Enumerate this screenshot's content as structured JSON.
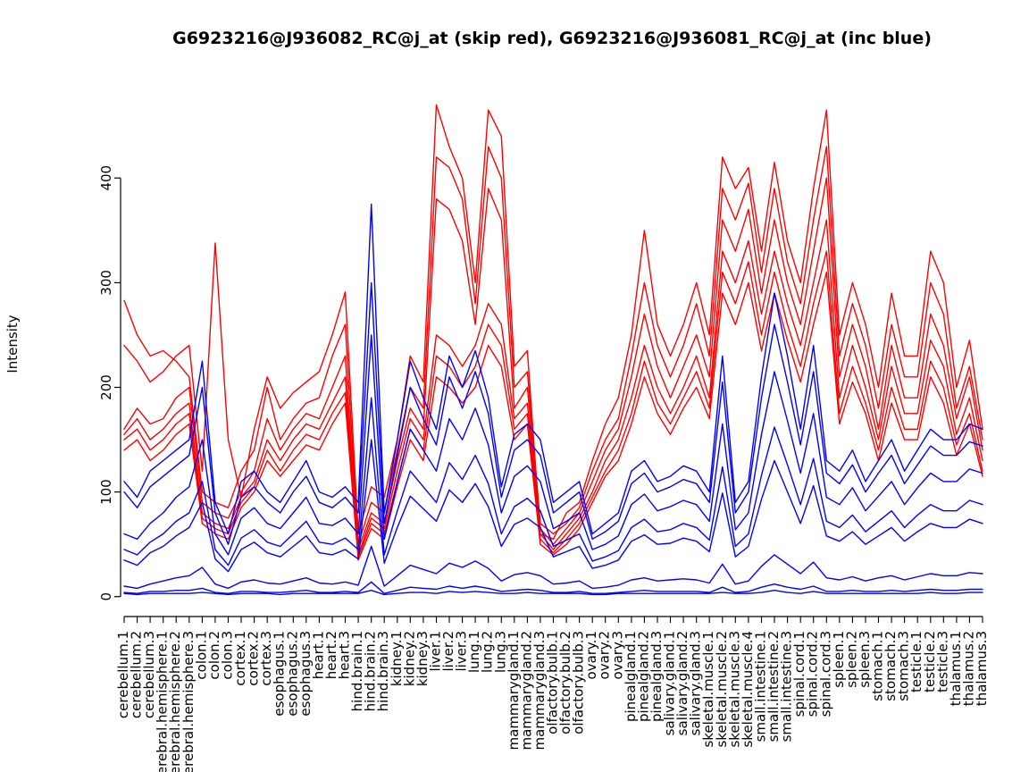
{
  "colors": {
    "skip_series": "#FF0000",
    "inc_series": "#0000FF",
    "axis": "#000000",
    "background": "#FFFFFF"
  },
  "chart_data": {
    "type": "line",
    "title": "G6923216@J936082_RC@j_at (skip red), G6923216@J936081_RC@j_at (inc blue)",
    "xlabel": "",
    "ylabel": "Intensity",
    "ylim": [
      0,
      470
    ],
    "yticks": [
      0,
      100,
      200,
      300,
      400
    ],
    "grid": false,
    "legend_position": "none",
    "legend_note": {
      "red": "G6923216@J936082_RC@j_at (skip)",
      "blue": "G6923216@J936081_RC@j_at (inc)"
    },
    "x_tick_label_rotation": 90,
    "categories": [
      "cerebellum.1",
      "cerebellum.2",
      "cerebellum.3",
      "cerebral.hemisphere.1",
      "cerebral.hemisphere.2",
      "cerebral.hemisphere.3",
      "colon.1",
      "colon.2",
      "colon.3",
      "cortex.1",
      "cortex.2",
      "cortex.3",
      "esophagus.1",
      "esophagus.2",
      "esophagus.3",
      "heart.1",
      "heart.2",
      "heart.3",
      "hind.brain.1",
      "hind.brain.2",
      "hind.brain.3",
      "kidney.1",
      "kidney.2",
      "kidney.3",
      "liver.1",
      "liver.2",
      "liver.3",
      "lung.1",
      "lung.2",
      "lung.3",
      "mammarygland.1",
      "mammarygland.2",
      "mammarygland.3",
      "olfactory.bulb.1",
      "olfactory.bulb.2",
      "olfactory.bulb.3",
      "ovary.1",
      "ovary.2",
      "ovary.3",
      "pinealgland.1",
      "pinealgland.2",
      "pinealgland.3",
      "salivary.gland.1",
      "salivary.gland.2",
      "salivary.gland.3",
      "skeletal.muscle.1",
      "skeletal.muscle.2",
      "skeletal.muscle.3",
      "skeletal.muscle.4",
      "small.intestine.1",
      "small.intestine.2",
      "small.intestine.3",
      "spinal.cord.1",
      "spinal.cord.2",
      "spinal.cord.3",
      "spleen.1",
      "spleen.2",
      "spleen.3",
      "stomach.1",
      "stomach.2",
      "stomach.3",
      "testicle.1",
      "testicle.2",
      "testicle.3",
      "thalamus.1",
      "thalamus.2",
      "thalamus.3"
    ],
    "series": [
      {
        "name": "skip-red-1",
        "color": "#FF0000",
        "values": [
          240,
          225,
          205,
          215,
          230,
          240,
          120,
          338,
          150,
          95,
          160,
          210,
          180,
          195,
          205,
          215,
          250,
          291,
          60,
          105,
          95,
          150,
          230,
          205,
          470,
          430,
          400,
          300,
          465,
          440,
          220,
          235,
          60,
          55,
          80,
          90,
          130,
          165,
          190,
          250,
          350,
          260,
          230,
          260,
          300,
          250,
          420,
          390,
          410,
          330,
          415,
          340,
          300,
          390,
          465,
          250,
          300,
          260,
          200,
          290,
          230,
          230,
          330,
          300,
          200,
          245,
          160
        ]
      },
      {
        "name": "skip-red-2",
        "color": "#FF0000",
        "values": [
          283,
          250,
          230,
          235,
          225,
          210,
          100,
          90,
          85,
          120,
          140,
          200,
          150,
          170,
          185,
          190,
          230,
          260,
          50,
          90,
          80,
          140,
          200,
          180,
          420,
          410,
          380,
          280,
          430,
          400,
          200,
          215,
          70,
          60,
          70,
          85,
          120,
          150,
          170,
          230,
          300,
          240,
          210,
          240,
          280,
          230,
          390,
          360,
          395,
          310,
          390,
          320,
          280,
          360,
          430,
          230,
          280,
          240,
          180,
          260,
          210,
          210,
          300,
          270,
          180,
          220,
          150
        ]
      },
      {
        "name": "skip-red-3",
        "color": "#FF0000",
        "values": [
          160,
          180,
          165,
          170,
          190,
          200,
          90,
          80,
          75,
          100,
          120,
          170,
          140,
          160,
          175,
          170,
          200,
          230,
          45,
          80,
          70,
          130,
          180,
          160,
          380,
          370,
          340,
          260,
          390,
          360,
          180,
          200,
          65,
          50,
          65,
          80,
          110,
          140,
          160,
          210,
          270,
          220,
          190,
          220,
          250,
          210,
          360,
          330,
          370,
          290,
          360,
          300,
          260,
          330,
          400,
          210,
          260,
          220,
          160,
          240,
          190,
          190,
          270,
          240,
          170,
          210,
          140
        ]
      },
      {
        "name": "skip-red-4",
        "color": "#FF0000",
        "values": [
          155,
          170,
          150,
          160,
          175,
          185,
          80,
          70,
          65,
          95,
          110,
          150,
          130,
          150,
          165,
          160,
          185,
          210,
          40,
          75,
          65,
          120,
          170,
          150,
          250,
          240,
          220,
          240,
          280,
          260,
          170,
          185,
          60,
          45,
          60,
          75,
          100,
          130,
          150,
          190,
          240,
          200,
          175,
          200,
          230,
          190,
          330,
          300,
          340,
          270,
          330,
          280,
          240,
          300,
          360,
          190,
          240,
          200,
          150,
          220,
          175,
          175,
          245,
          220,
          155,
          190,
          130
        ]
      },
      {
        "name": "skip-red-5",
        "color": "#FF0000",
        "values": [
          150,
          160,
          140,
          150,
          165,
          175,
          75,
          65,
          60,
          90,
          105,
          140,
          120,
          140,
          155,
          150,
          175,
          195,
          38,
          70,
          60,
          110,
          160,
          140,
          230,
          220,
          200,
          220,
          260,
          240,
          160,
          175,
          55,
          42,
          55,
          70,
          95,
          120,
          140,
          175,
          225,
          185,
          165,
          190,
          215,
          180,
          310,
          280,
          320,
          250,
          310,
          260,
          220,
          280,
          330,
          175,
          220,
          185,
          140,
          200,
          160,
          160,
          225,
          200,
          145,
          175,
          120
        ]
      },
      {
        "name": "skip-red-6",
        "color": "#FF0000",
        "values": [
          140,
          150,
          130,
          140,
          155,
          165,
          70,
          60,
          55,
          85,
          100,
          130,
          115,
          130,
          145,
          140,
          165,
          185,
          35,
          65,
          55,
          105,
          150,
          130,
          210,
          200,
          185,
          200,
          240,
          220,
          150,
          165,
          50,
          40,
          50,
          65,
          90,
          115,
          130,
          165,
          210,
          175,
          155,
          180,
          200,
          170,
          290,
          260,
          300,
          235,
          290,
          245,
          205,
          260,
          310,
          165,
          205,
          175,
          130,
          185,
          150,
          150,
          210,
          185,
          135,
          165,
          115
        ]
      },
      {
        "name": "inc-blue-1",
        "color": "#0000FF",
        "values": [
          110,
          95,
          120,
          130,
          140,
          150,
          225,
          90,
          60,
          110,
          120,
          100,
          90,
          110,
          130,
          100,
          95,
          105,
          90,
          375,
          80,
          150,
          225,
          190,
          160,
          230,
          200,
          235,
          190,
          105,
          155,
          165,
          150,
          90,
          100,
          110,
          60,
          70,
          80,
          120,
          130,
          110,
          115,
          125,
          120,
          100,
          230,
          90,
          110,
          210,
          290,
          230,
          160,
          240,
          130,
          120,
          140,
          110,
          130,
          150,
          120,
          140,
          160,
          150,
          150,
          165,
          160
        ]
      },
      {
        "name": "inc-blue-2",
        "color": "#0000FF",
        "values": [
          100,
          85,
          105,
          115,
          125,
          135,
          200,
          80,
          50,
          95,
          105,
          90,
          80,
          100,
          115,
          90,
          85,
          95,
          80,
          300,
          70,
          135,
          200,
          170,
          145,
          210,
          180,
          215,
          175,
          95,
          140,
          150,
          135,
          80,
          90,
          100,
          55,
          62,
          72,
          108,
          118,
          100,
          105,
          112,
          108,
          90,
          205,
          80,
          100,
          190,
          260,
          205,
          145,
          215,
          118,
          108,
          126,
          100,
          118,
          135,
          108,
          126,
          144,
          135,
          135,
          148,
          144
        ]
      },
      {
        "name": "inc-blue-3",
        "color": "#0000FF",
        "values": [
          60,
          55,
          70,
          80,
          95,
          105,
          150,
          60,
          40,
          75,
          85,
          70,
          65,
          80,
          95,
          70,
          68,
          75,
          60,
          250,
          55,
          110,
          160,
          140,
          120,
          170,
          150,
          180,
          145,
          80,
          115,
          125,
          110,
          65,
          72,
          80,
          45,
          50,
          58,
          88,
          98,
          82,
          86,
          92,
          88,
          72,
          165,
          64,
          80,
          155,
          215,
          168,
          118,
          175,
          95,
          88,
          104,
          82,
          96,
          110,
          88,
          104,
          118,
          110,
          110,
          122,
          118
        ]
      },
      {
        "name": "inc-blue-4",
        "color": "#0000FF",
        "values": [
          45,
          40,
          52,
          60,
          72,
          80,
          110,
          45,
          30,
          56,
          64,
          52,
          48,
          60,
          72,
          52,
          50,
          56,
          45,
          190,
          40,
          82,
          120,
          105,
          90,
          128,
          112,
          135,
          108,
          60,
          86,
          94,
          82,
          48,
          54,
          60,
          34,
          38,
          44,
          66,
          74,
          62,
          64,
          70,
          66,
          54,
          124,
          48,
          60,
          116,
          162,
          126,
          88,
          132,
          72,
          66,
          78,
          62,
          72,
          82,
          66,
          78,
          88,
          82,
          82,
          92,
          88
        ]
      },
      {
        "name": "inc-blue-5",
        "color": "#0000FF",
        "values": [
          35,
          30,
          42,
          48,
          58,
          66,
          90,
          36,
          24,
          45,
          52,
          42,
          38,
          48,
          58,
          42,
          40,
          45,
          36,
          150,
          32,
          66,
          96,
          84,
          72,
          102,
          90,
          108,
          86,
          48,
          69,
          75,
          66,
          38,
          43,
          48,
          27,
          30,
          35,
          53,
          59,
          50,
          51,
          56,
          53,
          43,
          99,
          38,
          48,
          93,
          130,
          100,
          70,
          106,
          58,
          53,
          62,
          50,
          58,
          66,
          53,
          62,
          70,
          66,
          66,
          74,
          70
        ]
      },
      {
        "name": "inc-blue-6",
        "color": "#0000FF",
        "values": [
          10,
          8,
          12,
          15,
          18,
          20,
          28,
          12,
          8,
          14,
          16,
          13,
          12,
          15,
          18,
          13,
          12,
          14,
          11,
          48,
          10,
          20,
          30,
          26,
          22,
          32,
          28,
          34,
          27,
          15,
          21,
          23,
          20,
          12,
          13,
          15,
          8,
          9,
          11,
          16,
          18,
          15,
          16,
          17,
          16,
          13,
          31,
          12,
          15,
          29,
          40,
          31,
          22,
          33,
          18,
          16,
          19,
          15,
          18,
          20,
          16,
          19,
          22,
          20,
          20,
          23,
          22
        ]
      },
      {
        "name": "inc-blue-7",
        "color": "#0000FF",
        "values": [
          4,
          3,
          5,
          5,
          6,
          6,
          8,
          4,
          3,
          5,
          5,
          4,
          4,
          5,
          6,
          4,
          4,
          5,
          4,
          14,
          3,
          6,
          9,
          8,
          7,
          10,
          8,
          10,
          8,
          5,
          6,
          7,
          6,
          4,
          4,
          5,
          3,
          3,
          4,
          5,
          6,
          5,
          5,
          5,
          5,
          4,
          9,
          4,
          5,
          9,
          12,
          9,
          7,
          10,
          5,
          5,
          6,
          5,
          5,
          6,
          5,
          6,
          7,
          6,
          6,
          7,
          7
        ]
      },
      {
        "name": "inc-blue-8",
        "color": "#0000FF",
        "values": [
          3,
          2,
          3,
          3,
          3,
          3,
          4,
          3,
          2,
          3,
          3,
          3,
          2,
          3,
          3,
          3,
          3,
          3,
          3,
          6,
          2,
          3,
          4,
          4,
          3,
          5,
          4,
          5,
          4,
          3,
          3,
          4,
          3,
          3,
          3,
          3,
          2,
          2,
          3,
          3,
          3,
          3,
          3,
          3,
          3,
          3,
          4,
          3,
          3,
          4,
          6,
          4,
          3,
          5,
          3,
          3,
          3,
          3,
          3,
          3,
          3,
          3,
          4,
          3,
          3,
          4,
          4
        ]
      }
    ]
  }
}
